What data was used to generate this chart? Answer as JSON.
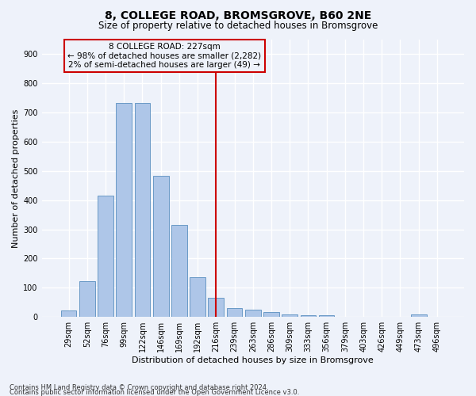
{
  "title": "8, COLLEGE ROAD, BROMSGROVE, B60 2NE",
  "subtitle": "Size of property relative to detached houses in Bromsgrove",
  "xlabel": "Distribution of detached houses by size in Bromsgrove",
  "ylabel": "Number of detached properties",
  "categories": [
    "29sqm",
    "52sqm",
    "76sqm",
    "99sqm",
    "122sqm",
    "146sqm",
    "169sqm",
    "192sqm",
    "216sqm",
    "239sqm",
    "263sqm",
    "286sqm",
    "309sqm",
    "333sqm",
    "356sqm",
    "379sqm",
    "403sqm",
    "426sqm",
    "449sqm",
    "473sqm",
    "496sqm"
  ],
  "values": [
    22,
    122,
    416,
    733,
    733,
    483,
    316,
    135,
    67,
    30,
    25,
    18,
    10,
    7,
    5,
    0,
    0,
    0,
    0,
    10,
    0
  ],
  "bar_color": "#aec6e8",
  "bar_edge_color": "#5a8fc0",
  "vline_x": 8.0,
  "marker_label": "8 COLLEGE ROAD: 227sqm",
  "annotation_line1": "← 98% of detached houses are smaller (2,282)",
  "annotation_line2": "2% of semi-detached houses are larger (49) →",
  "vline_color": "#cc0000",
  "box_edge_color": "#cc0000",
  "ylim": [
    0,
    950
  ],
  "yticks": [
    0,
    100,
    200,
    300,
    400,
    500,
    600,
    700,
    800,
    900
  ],
  "footnote1": "Contains HM Land Registry data © Crown copyright and database right 2024.",
  "footnote2": "Contains public sector information licensed under the Open Government Licence v3.0.",
  "bg_color": "#eef2fa",
  "grid_color": "#ffffff",
  "title_fontsize": 10,
  "subtitle_fontsize": 8.5,
  "axis_label_fontsize": 8,
  "tick_fontsize": 7,
  "annotation_fontsize": 7.5,
  "footnote_fontsize": 6
}
